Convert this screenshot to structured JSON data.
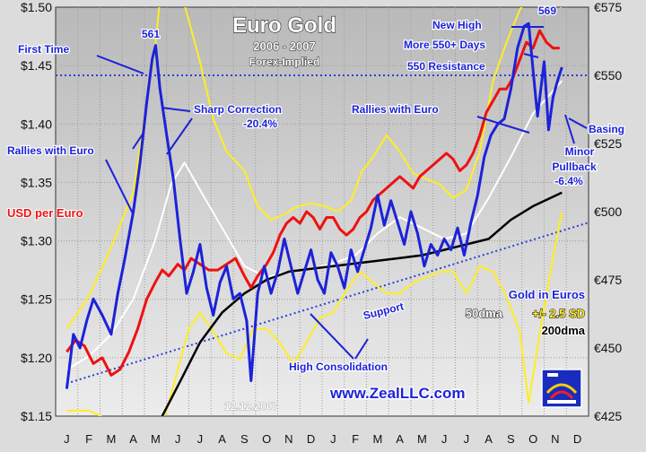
{
  "chart_data": {
    "type": "line",
    "title": "Euro Gold",
    "subtitle_years": "2006 - 2007",
    "subtitle_note": "Forex-Implied",
    "date_stamp": "12.12.2007",
    "website": "www.ZealLLC.com",
    "left_axis": {
      "label": "USD per Euro",
      "range": [
        1.15,
        1.5
      ],
      "ticks": [
        "$1.15",
        "$1.20",
        "$1.25",
        "$1.30",
        "$1.35",
        "$1.40",
        "$1.45",
        "$1.50"
      ]
    },
    "right_axis": {
      "label": "Gold in Euros",
      "range": [
        425,
        575
      ],
      "ticks": [
        "€425",
        "€450",
        "€475",
        "€500",
        "€525",
        "€550",
        "€575"
      ]
    },
    "x_axis": {
      "ticks": [
        "J",
        "F",
        "M",
        "A",
        "M",
        "J",
        "J",
        "A",
        "S",
        "O",
        "N",
        "D",
        "J",
        "F",
        "M",
        "A",
        "M",
        "J",
        "J",
        "A",
        "S",
        "O",
        "N",
        "D"
      ]
    },
    "legend": {
      "gold": "Gold in Euros",
      "dma50": "50dma",
      "bands": "+/- 2.5 SD",
      "dma200": "200dma"
    },
    "annotations": {
      "first_time": "First Time",
      "peak_2006": "561",
      "sharp_correction": "Sharp Correction",
      "sharp_correction_pct": "-20.4%",
      "rallies_1": "Rallies with Euro",
      "high_consolidation": "High Consolidation",
      "support": "Support",
      "rallies_2": "Rallies with Euro",
      "new_high": "New High",
      "peak_2007": "569",
      "more_550": "More 550+ Days",
      "resistance_550": "550 Resistance",
      "basing": "Basing",
      "minor": "Minor",
      "pullback": "Pullback",
      "pullback_pct": "-6.4%"
    },
    "colors": {
      "gold_euro": "#1c22d8",
      "usd_per_euro": "#ee1111",
      "dma50": "#ffffff",
      "bands": "#ffee22",
      "dma200": "#000000",
      "support_line": "#2b3fd6",
      "resistance_line": "#2b3fd6",
      "bg_top": "#b9b9b9",
      "bg_bottom": "#ececec"
    },
    "resistance_level": 550,
    "support_line": [
      [
        0,
        437
      ],
      [
        23.5,
        496
      ]
    ],
    "series": [
      {
        "name": "Gold in Euros",
        "axis": "right",
        "points": [
          [
            0,
            435
          ],
          [
            0.3,
            455
          ],
          [
            0.6,
            450
          ],
          [
            0.9,
            460
          ],
          [
            1.2,
            468
          ],
          [
            1.6,
            462
          ],
          [
            2.0,
            455
          ],
          [
            2.3,
            470
          ],
          [
            2.6,
            482
          ],
          [
            3.0,
            500
          ],
          [
            3.3,
            518
          ],
          [
            3.6,
            540
          ],
          [
            3.85,
            556
          ],
          [
            4.0,
            561
          ],
          [
            4.2,
            545
          ],
          [
            4.5,
            528
          ],
          [
            4.8,
            512
          ],
          [
            5.1,
            490
          ],
          [
            5.4,
            470
          ],
          [
            5.7,
            478
          ],
          [
            6.0,
            488
          ],
          [
            6.3,
            472
          ],
          [
            6.6,
            462
          ],
          [
            6.9,
            474
          ],
          [
            7.2,
            480
          ],
          [
            7.5,
            468
          ],
          [
            7.8,
            470
          ],
          [
            8.1,
            460
          ],
          [
            8.3,
            438
          ],
          [
            8.6,
            470
          ],
          [
            8.9,
            480
          ],
          [
            9.2,
            470
          ],
          [
            9.5,
            478
          ],
          [
            9.8,
            490
          ],
          [
            10.1,
            480
          ],
          [
            10.4,
            470
          ],
          [
            10.7,
            478
          ],
          [
            11.0,
            486
          ],
          [
            11.3,
            475
          ],
          [
            11.6,
            470
          ],
          [
            11.9,
            485
          ],
          [
            12.2,
            480
          ],
          [
            12.5,
            472
          ],
          [
            12.8,
            486
          ],
          [
            13.1,
            478
          ],
          [
            13.4,
            486
          ],
          [
            13.7,
            494
          ],
          [
            14.0,
            506
          ],
          [
            14.3,
            495
          ],
          [
            14.6,
            504
          ],
          [
            14.9,
            496
          ],
          [
            15.2,
            488
          ],
          [
            15.5,
            500
          ],
          [
            15.8,
            492
          ],
          [
            16.1,
            480
          ],
          [
            16.4,
            488
          ],
          [
            16.7,
            484
          ],
          [
            17.0,
            490
          ],
          [
            17.3,
            486
          ],
          [
            17.6,
            494
          ],
          [
            17.9,
            484
          ],
          [
            18.2,
            496
          ],
          [
            18.5,
            506
          ],
          [
            18.8,
            520
          ],
          [
            19.1,
            528
          ],
          [
            19.4,
            532
          ],
          [
            19.7,
            534
          ],
          [
            20.0,
            545
          ],
          [
            20.3,
            560
          ],
          [
            20.6,
            568
          ],
          [
            20.8,
            569
          ],
          [
            21.0,
            552
          ],
          [
            21.2,
            535
          ],
          [
            21.5,
            555
          ],
          [
            21.7,
            530
          ],
          [
            21.9,
            542
          ],
          [
            22.1,
            548
          ],
          [
            22.3,
            553
          ]
        ]
      },
      {
        "name": "USD per Euro",
        "axis": "left",
        "points": [
          [
            0,
            1.205
          ],
          [
            0.4,
            1.215
          ],
          [
            0.8,
            1.21
          ],
          [
            1.2,
            1.195
          ],
          [
            1.6,
            1.2
          ],
          [
            2.0,
            1.185
          ],
          [
            2.4,
            1.19
          ],
          [
            2.8,
            1.205
          ],
          [
            3.2,
            1.225
          ],
          [
            3.6,
            1.25
          ],
          [
            4.0,
            1.265
          ],
          [
            4.3,
            1.275
          ],
          [
            4.6,
            1.27
          ],
          [
            5.0,
            1.28
          ],
          [
            5.3,
            1.275
          ],
          [
            5.6,
            1.285
          ],
          [
            6.0,
            1.28
          ],
          [
            6.4,
            1.275
          ],
          [
            6.8,
            1.275
          ],
          [
            7.2,
            1.28
          ],
          [
            7.6,
            1.285
          ],
          [
            8.0,
            1.27
          ],
          [
            8.3,
            1.26
          ],
          [
            8.6,
            1.27
          ],
          [
            9.0,
            1.28
          ],
          [
            9.3,
            1.29
          ],
          [
            9.6,
            1.305
          ],
          [
            9.9,
            1.315
          ],
          [
            10.2,
            1.32
          ],
          [
            10.5,
            1.315
          ],
          [
            10.8,
            1.325
          ],
          [
            11.1,
            1.32
          ],
          [
            11.4,
            1.31
          ],
          [
            11.7,
            1.32
          ],
          [
            12.0,
            1.32
          ],
          [
            12.3,
            1.31
          ],
          [
            12.6,
            1.305
          ],
          [
            12.9,
            1.31
          ],
          [
            13.2,
            1.32
          ],
          [
            13.5,
            1.325
          ],
          [
            13.8,
            1.335
          ],
          [
            14.1,
            1.34
          ],
          [
            14.4,
            1.345
          ],
          [
            14.7,
            1.35
          ],
          [
            15.0,
            1.355
          ],
          [
            15.3,
            1.35
          ],
          [
            15.6,
            1.345
          ],
          [
            15.9,
            1.355
          ],
          [
            16.2,
            1.36
          ],
          [
            16.5,
            1.365
          ],
          [
            16.8,
            1.37
          ],
          [
            17.1,
            1.375
          ],
          [
            17.4,
            1.37
          ],
          [
            17.7,
            1.36
          ],
          [
            18.0,
            1.365
          ],
          [
            18.3,
            1.375
          ],
          [
            18.6,
            1.39
          ],
          [
            18.9,
            1.41
          ],
          [
            19.2,
            1.42
          ],
          [
            19.5,
            1.43
          ],
          [
            19.8,
            1.43
          ],
          [
            20.1,
            1.44
          ],
          [
            20.4,
            1.455
          ],
          [
            20.7,
            1.47
          ],
          [
            21.0,
            1.465
          ],
          [
            21.3,
            1.48
          ],
          [
            21.6,
            1.47
          ],
          [
            21.9,
            1.465
          ],
          [
            22.2,
            1.465
          ]
        ]
      },
      {
        "name": "50dma",
        "axis": "right",
        "points": [
          [
            0,
            442
          ],
          [
            1,
            447
          ],
          [
            2,
            455
          ],
          [
            3,
            468
          ],
          [
            4,
            490
          ],
          [
            4.7,
            510
          ],
          [
            5.3,
            518
          ],
          [
            6,
            508
          ],
          [
            7,
            494
          ],
          [
            8,
            480
          ],
          [
            9,
            476
          ],
          [
            10,
            478
          ],
          [
            11,
            479
          ],
          [
            12,
            481
          ],
          [
            13,
            484
          ],
          [
            14,
            492
          ],
          [
            15,
            498
          ],
          [
            16,
            494
          ],
          [
            17,
            490
          ],
          [
            18,
            492
          ],
          [
            19,
            505
          ],
          [
            20,
            520
          ],
          [
            21,
            536
          ],
          [
            22.3,
            548
          ]
        ]
      },
      {
        "name": "200dma",
        "axis": "right",
        "points": [
          [
            4.3,
            425
          ],
          [
            5,
            436
          ],
          [
            6,
            452
          ],
          [
            7,
            463
          ],
          [
            8,
            470
          ],
          [
            9,
            475
          ],
          [
            10,
            478
          ],
          [
            11,
            479
          ],
          [
            12,
            480
          ],
          [
            13,
            481
          ],
          [
            14,
            482
          ],
          [
            15,
            483
          ],
          [
            16,
            484
          ],
          [
            17,
            486
          ],
          [
            18,
            488
          ],
          [
            19,
            490
          ],
          [
            20,
            497
          ],
          [
            21,
            502
          ],
          [
            22.3,
            507
          ]
        ]
      },
      {
        "name": "+2.5 SD",
        "axis": "right",
        "points": [
          [
            0,
            457
          ],
          [
            1,
            469
          ],
          [
            2,
            487
          ],
          [
            3,
            507
          ],
          [
            3.6,
            540
          ],
          [
            4.0,
            562
          ],
          [
            4.2,
            578
          ],
          [
            4.8,
            580
          ],
          [
            5.3,
            576
          ],
          [
            6.0,
            555
          ],
          [
            6.6,
            534
          ],
          [
            7.2,
            522
          ],
          [
            8.0,
            515
          ],
          [
            8.6,
            502
          ],
          [
            9.2,
            497
          ],
          [
            9.8,
            499
          ],
          [
            10.4,
            502
          ],
          [
            11.0,
            503
          ],
          [
            11.6,
            502
          ],
          [
            12.2,
            500
          ],
          [
            12.8,
            504
          ],
          [
            13.3,
            515
          ],
          [
            13.8,
            520
          ],
          [
            14.4,
            528
          ],
          [
            15.0,
            522
          ],
          [
            15.6,
            514
          ],
          [
            16.2,
            512
          ],
          [
            16.8,
            510
          ],
          [
            17.4,
            505
          ],
          [
            18.0,
            508
          ],
          [
            18.6,
            522
          ],
          [
            19.2,
            548
          ],
          [
            19.8,
            562
          ],
          [
            20.4,
            574
          ],
          [
            20.8,
            579
          ],
          [
            21.3,
            578
          ],
          [
            22.0,
            576
          ],
          [
            22.3,
            575
          ]
        ]
      },
      {
        "name": "-2.5 SD",
        "axis": "right",
        "points": [
          [
            0,
            427
          ],
          [
            1,
            427
          ],
          [
            2,
            423
          ],
          [
            3,
            421
          ],
          [
            4,
            420
          ],
          [
            4.5,
            427
          ],
          [
            5.0,
            442
          ],
          [
            5.5,
            457
          ],
          [
            6.0,
            463
          ],
          [
            6.6,
            456
          ],
          [
            7.2,
            448
          ],
          [
            7.8,
            446
          ],
          [
            8.4,
            457
          ],
          [
            9.0,
            457
          ],
          [
            9.6,
            452
          ],
          [
            10.2,
            444
          ],
          [
            10.8,
            452
          ],
          [
            11.4,
            461
          ],
          [
            12.0,
            463
          ],
          [
            12.6,
            471
          ],
          [
            13.2,
            478
          ],
          [
            13.8,
            474
          ],
          [
            14.4,
            470
          ],
          [
            15.0,
            470
          ],
          [
            15.6,
            474
          ],
          [
            16.2,
            476
          ],
          [
            16.8,
            478
          ],
          [
            17.4,
            478
          ],
          [
            18.0,
            470
          ],
          [
            18.6,
            480
          ],
          [
            19.2,
            478
          ],
          [
            19.8,
            469
          ],
          [
            20.4,
            456
          ],
          [
            20.8,
            430
          ],
          [
            21.3,
            455
          ],
          [
            22.0,
            488
          ],
          [
            22.3,
            500
          ]
        ]
      }
    ]
  }
}
